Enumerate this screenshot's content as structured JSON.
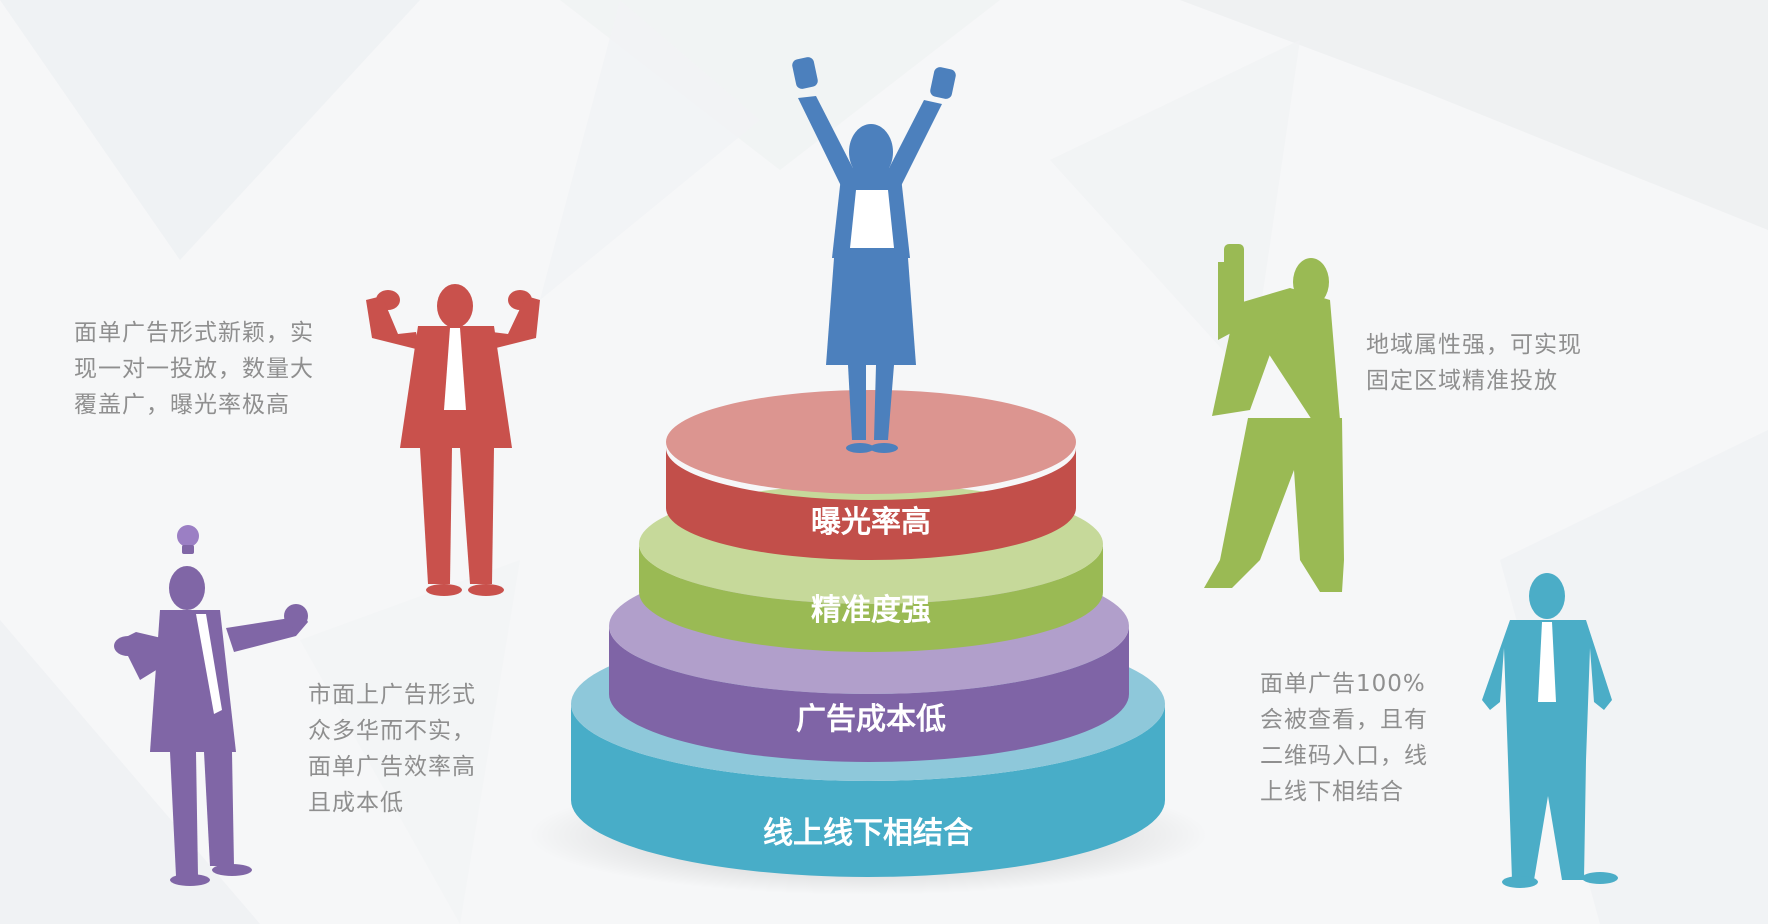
{
  "colors": {
    "red": "#c9514c",
    "green": "#9aba54",
    "purple": "#8066a6",
    "blue": "#4c80bd",
    "cyan": "#4badc7",
    "text_gray": "#8f8f8f"
  },
  "tiers": [
    {
      "label": "曝光率高"
    },
    {
      "label": "精准度强"
    },
    {
      "label": "广告成本低"
    },
    {
      "label": "线上线下相结合"
    }
  ],
  "descriptions": {
    "top_left": "面单广告形式新颖，实\n现一对一投放，数量大\n覆盖广，曝光率极高",
    "bottom_left": "市面上广告形式\n众多华而不实，\n面单广告效率高\n且成本低",
    "top_right": "地域属性强，可实现\n固定区域精准投放",
    "bottom_right": "面单广告100%\n会被查看，且有\n二维码入口，线\n上线下相结合"
  },
  "icons": {
    "lightbulb": "lightbulb-icon"
  }
}
